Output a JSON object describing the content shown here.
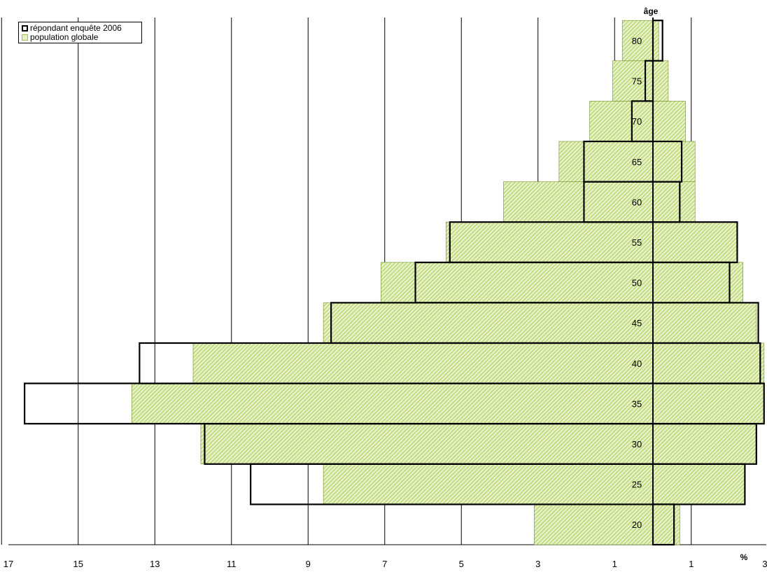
{
  "chart_data": {
    "type": "bar",
    "orientation": "horizontal",
    "x_axis_label": "%",
    "y_axis_label": "âge",
    "x_tick_labels": [
      "17",
      "15",
      "13",
      "11",
      "9",
      "7",
      "5",
      "3",
      "1",
      "1",
      "3"
    ],
    "categories": [
      "20",
      "25",
      "30",
      "35",
      "40",
      "45",
      "50",
      "55",
      "60",
      "65",
      "70",
      "75",
      "80"
    ],
    "series": [
      {
        "name": "répondant enquête 2006",
        "left_values": [
          0,
          10.5,
          11.7,
          16.4,
          13.4,
          8.4,
          6.2,
          5.3,
          1.8,
          1.8,
          0.55,
          0.2,
          0.0
        ],
        "right_values": [
          0.55,
          2.4,
          2.7,
          2.9,
          2.8,
          2.75,
          2.0,
          2.2,
          0.7,
          0.75,
          0.0,
          0.0,
          0.25
        ]
      },
      {
        "name": "population globale",
        "left_values": [
          3.1,
          8.6,
          11.8,
          13.6,
          12.0,
          8.6,
          7.1,
          5.4,
          3.9,
          2.45,
          1.65,
          1.05,
          0.8
        ],
        "right_values": [
          0.7,
          2.4,
          2.7,
          2.9,
          2.9,
          2.7,
          2.35,
          2.2,
          1.1,
          1.1,
          0.85,
          0.4,
          0.15
        ]
      }
    ],
    "legend_position": "top-left",
    "grid": true,
    "colors": {
      "population_fill": "#e6f0c4",
      "population_hatch": "#9ac83a",
      "outline": "#000000",
      "grid": "#000000"
    }
  }
}
